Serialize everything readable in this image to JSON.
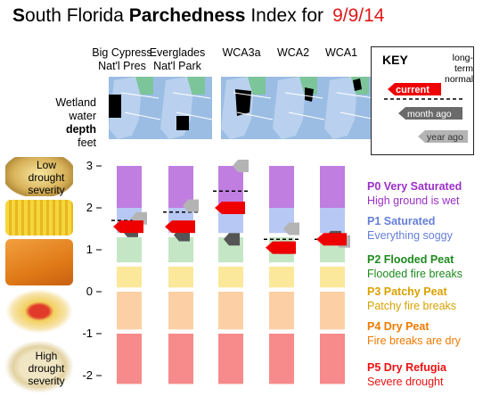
{
  "title": {
    "prefix_bold": "S",
    "prefix_rest": "outh Florida ",
    "bold": "Parchedness",
    "rest": " Index for",
    "date": "9/9/14"
  },
  "columns": [
    {
      "line1": "Big Cypress",
      "line2": "Nat'l Pres"
    },
    {
      "line1": "Everglades",
      "line2": "Nat'l Park"
    },
    {
      "line1": "WCA3a",
      "line2": ""
    },
    {
      "line1": "WCA2",
      "line2": ""
    },
    {
      "line1": "WCA1",
      "line2": ""
    }
  ],
  "row_label": {
    "l1": "Wetland",
    "l2": "water",
    "l3": "depth",
    "l4": "feet"
  },
  "food_labels": {
    "top": {
      "l1": "Low",
      "l2": "drought",
      "l3": "severity"
    },
    "bottom": {
      "l1": "High",
      "l2": "drought",
      "l3": "severity"
    }
  },
  "key": {
    "title": "KEY",
    "long_term": "long-term normal",
    "current": "current",
    "month_ago": "month ago",
    "year_ago": "year ago"
  },
  "bands": [
    {
      "code": "P0 Very Saturated",
      "desc": "High ground is wet",
      "color": "#c07ee0",
      "text_color": "#9b30c8",
      "from": 2,
      "to": 3
    },
    {
      "code": "P1 Saturated",
      "desc": "Everything soggy",
      "color": "#b8c8f4",
      "text_color": "#6680d8",
      "from": 1.4,
      "to": 2
    },
    {
      "code": "P2 Flooded Peat",
      "desc": "Flooded fire breaks",
      "color": "#c4e6c4",
      "text_color": "#1e8a1e",
      "from": 0.7,
      "to": 1.3
    },
    {
      "code": "P3 Patchy Peat",
      "desc": "Patchy fire breaks",
      "color": "#fbe89a",
      "text_color": "#d9a100",
      "from": 0.1,
      "to": 0.6
    },
    {
      "code": "P4 Dry Peat",
      "desc": "Fire breaks are dry",
      "color": "#fcd0a4",
      "text_color": "#f07a00",
      "from": -0.9,
      "to": 0
    },
    {
      "code": "P5 Dry Refugia",
      "desc": "Severe drought",
      "color": "#f78a8a",
      "text_color": "#ee1111",
      "from": -2.2,
      "to": -1
    }
  ],
  "chart_data": {
    "type": "scatter",
    "title": "South Florida Parchedness Index for 9/9/14",
    "ylabel": "Wetland water depth feet",
    "ylim": [
      -2.2,
      3.3
    ],
    "yticks": [
      3,
      2,
      1,
      0,
      -1,
      -2
    ],
    "categories": [
      "Big Cypress Nat'l Pres",
      "Everglades Nat'l Park",
      "WCA3a",
      "WCA2",
      "WCA1"
    ],
    "series": [
      {
        "name": "current",
        "color": "#ee0000",
        "values": [
          1.55,
          1.55,
          2.0,
          1.05,
          1.25
        ]
      },
      {
        "name": "month ago",
        "color": "#555555",
        "values": [
          1.45,
          1.35,
          1.25,
          1.05,
          1.3
        ]
      },
      {
        "name": "year ago",
        "color": "#aaaaaa",
        "values": [
          1.75,
          2.05,
          3.0,
          1.5,
          1.2
        ]
      },
      {
        "name": "long-term normal",
        "color": "#000000",
        "values": [
          1.7,
          1.9,
          2.4,
          1.25,
          1.25
        ]
      }
    ]
  }
}
